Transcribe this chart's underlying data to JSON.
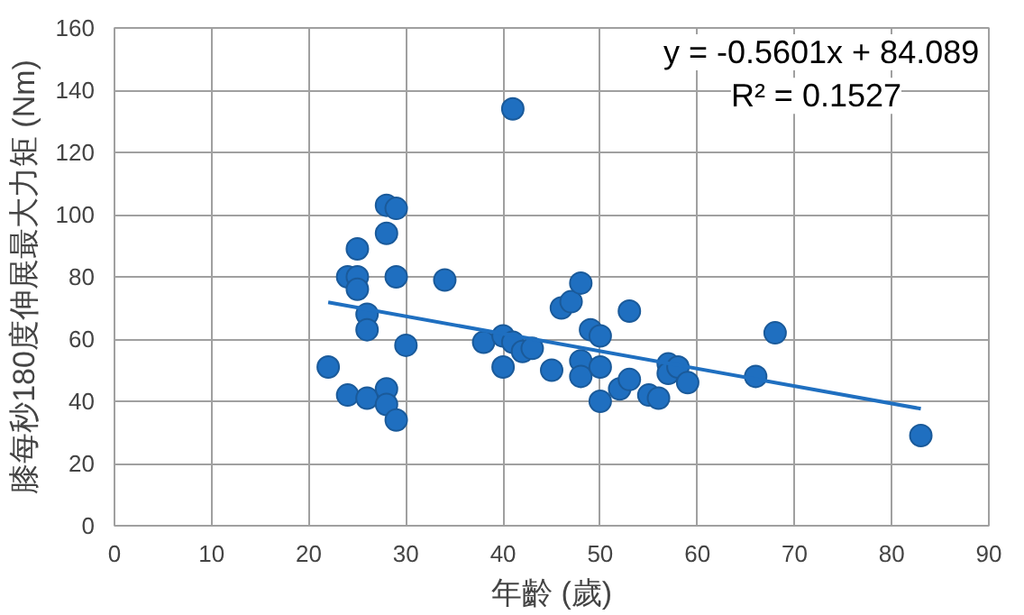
{
  "chart_data": {
    "type": "scatter",
    "xlabel": "年齡 (歲)",
    "ylabel": "膝每秒180度伸展最大力矩 (Nm)",
    "xlim": [
      0,
      90
    ],
    "xticks": [
      0,
      10,
      20,
      30,
      40,
      50,
      60,
      70,
      80,
      90
    ],
    "ylim": [
      0,
      160
    ],
    "yticks": [
      0,
      20,
      40,
      60,
      80,
      100,
      120,
      140,
      160
    ],
    "grid": true,
    "series": [
      {
        "marker": "circle",
        "color": "#1f6fc0",
        "x": [
          22,
          24,
          24,
          25,
          25,
          25,
          26,
          26,
          26,
          28,
          29,
          28,
          28,
          28,
          29,
          29,
          30,
          34,
          41,
          38,
          40,
          40,
          41,
          42,
          43,
          45,
          46,
          47,
          48,
          48,
          48,
          49,
          50,
          50,
          50,
          52,
          53,
          53,
          55,
          56,
          57,
          57,
          58,
          59,
          66,
          68,
          83
        ],
        "values": [
          51,
          42,
          80,
          80,
          89,
          76,
          68,
          63,
          41,
          103,
          102,
          94,
          44,
          39,
          34,
          80,
          58,
          79,
          134,
          59,
          61,
          51,
          59,
          56,
          57,
          50,
          70,
          72,
          78,
          53,
          48,
          63,
          61,
          51,
          40,
          44,
          69,
          47,
          42,
          41,
          52,
          49,
          51,
          46,
          48,
          62,
          29
        ]
      },
      {
        "type": "line",
        "color": "#1f6fc0",
        "x": [
          22,
          83
        ],
        "values": [
          71.8,
          37.6
        ]
      }
    ],
    "annotations": [
      "y = -0.5601x + 84.089",
      "R² = 0.1527"
    ]
  }
}
